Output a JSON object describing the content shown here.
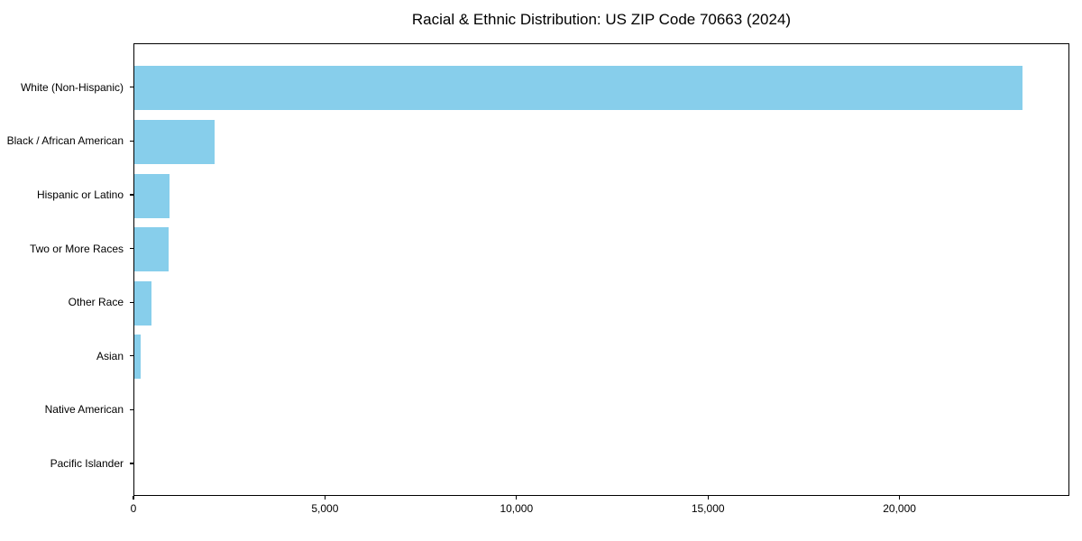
{
  "chart_data": {
    "type": "bar",
    "orientation": "horizontal",
    "title": "Racial & Ethnic Distribution: US ZIP Code 70663 (2024)",
    "categories": [
      "White (Non-Hispanic)",
      "Black / African American",
      "Hispanic or Latino",
      "Two or More Races",
      "Other Race",
      "Asian",
      "Native American",
      "Pacific Islander"
    ],
    "values": [
      23240,
      2100,
      930,
      890,
      455,
      165,
      0,
      0
    ],
    "xlabel": "",
    "ylabel": "",
    "xlim": [
      0,
      24435
    ],
    "xticks": [
      0,
      5000,
      10000,
      15000,
      20000
    ],
    "xtick_labels": [
      "0",
      "5,000",
      "10,000",
      "15,000",
      "20,000"
    ],
    "bar_color": "#87CEEB",
    "frame_color": "#000000",
    "background_color": "#ffffff",
    "grid": false,
    "legend": null
  }
}
